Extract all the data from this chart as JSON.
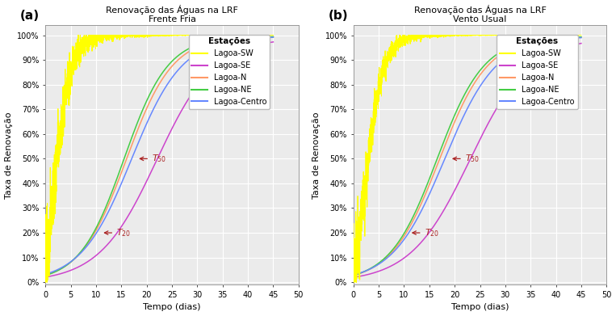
{
  "title_a": "Renovação das Águas na LRF\nFrente Fria",
  "title_b": "Renovação das Águas na LRF\nVento Usual",
  "xlabel": "Tempo (dias)",
  "ylabel": "Taxa de Renovação",
  "panel_a": "(a)",
  "panel_b": "(b)",
  "legend_title": "Estações",
  "legend_entries": [
    "Lagoa-SW",
    "Lagoa-SE",
    "Lagoa-N",
    "Lagoa-NE",
    "Lagoa-Centro"
  ],
  "colors": {
    "SW": "#ffff00",
    "SE": "#cc44cc",
    "N": "#ff9966",
    "NE": "#44cc44",
    "Centro": "#6688ff"
  },
  "xlim": [
    0,
    50
  ],
  "ylim": [
    0,
    1.0
  ],
  "yticks": [
    0.0,
    0.1,
    0.2,
    0.3,
    0.4,
    0.5,
    0.6,
    0.7,
    0.8,
    0.9,
    1.0
  ],
  "xticks": [
    0,
    5,
    10,
    15,
    20,
    25,
    30,
    35,
    40,
    45,
    50
  ],
  "bg_color": "#ebebeb",
  "grid_color": "#ffffff",
  "ann_color": "#aa2222"
}
